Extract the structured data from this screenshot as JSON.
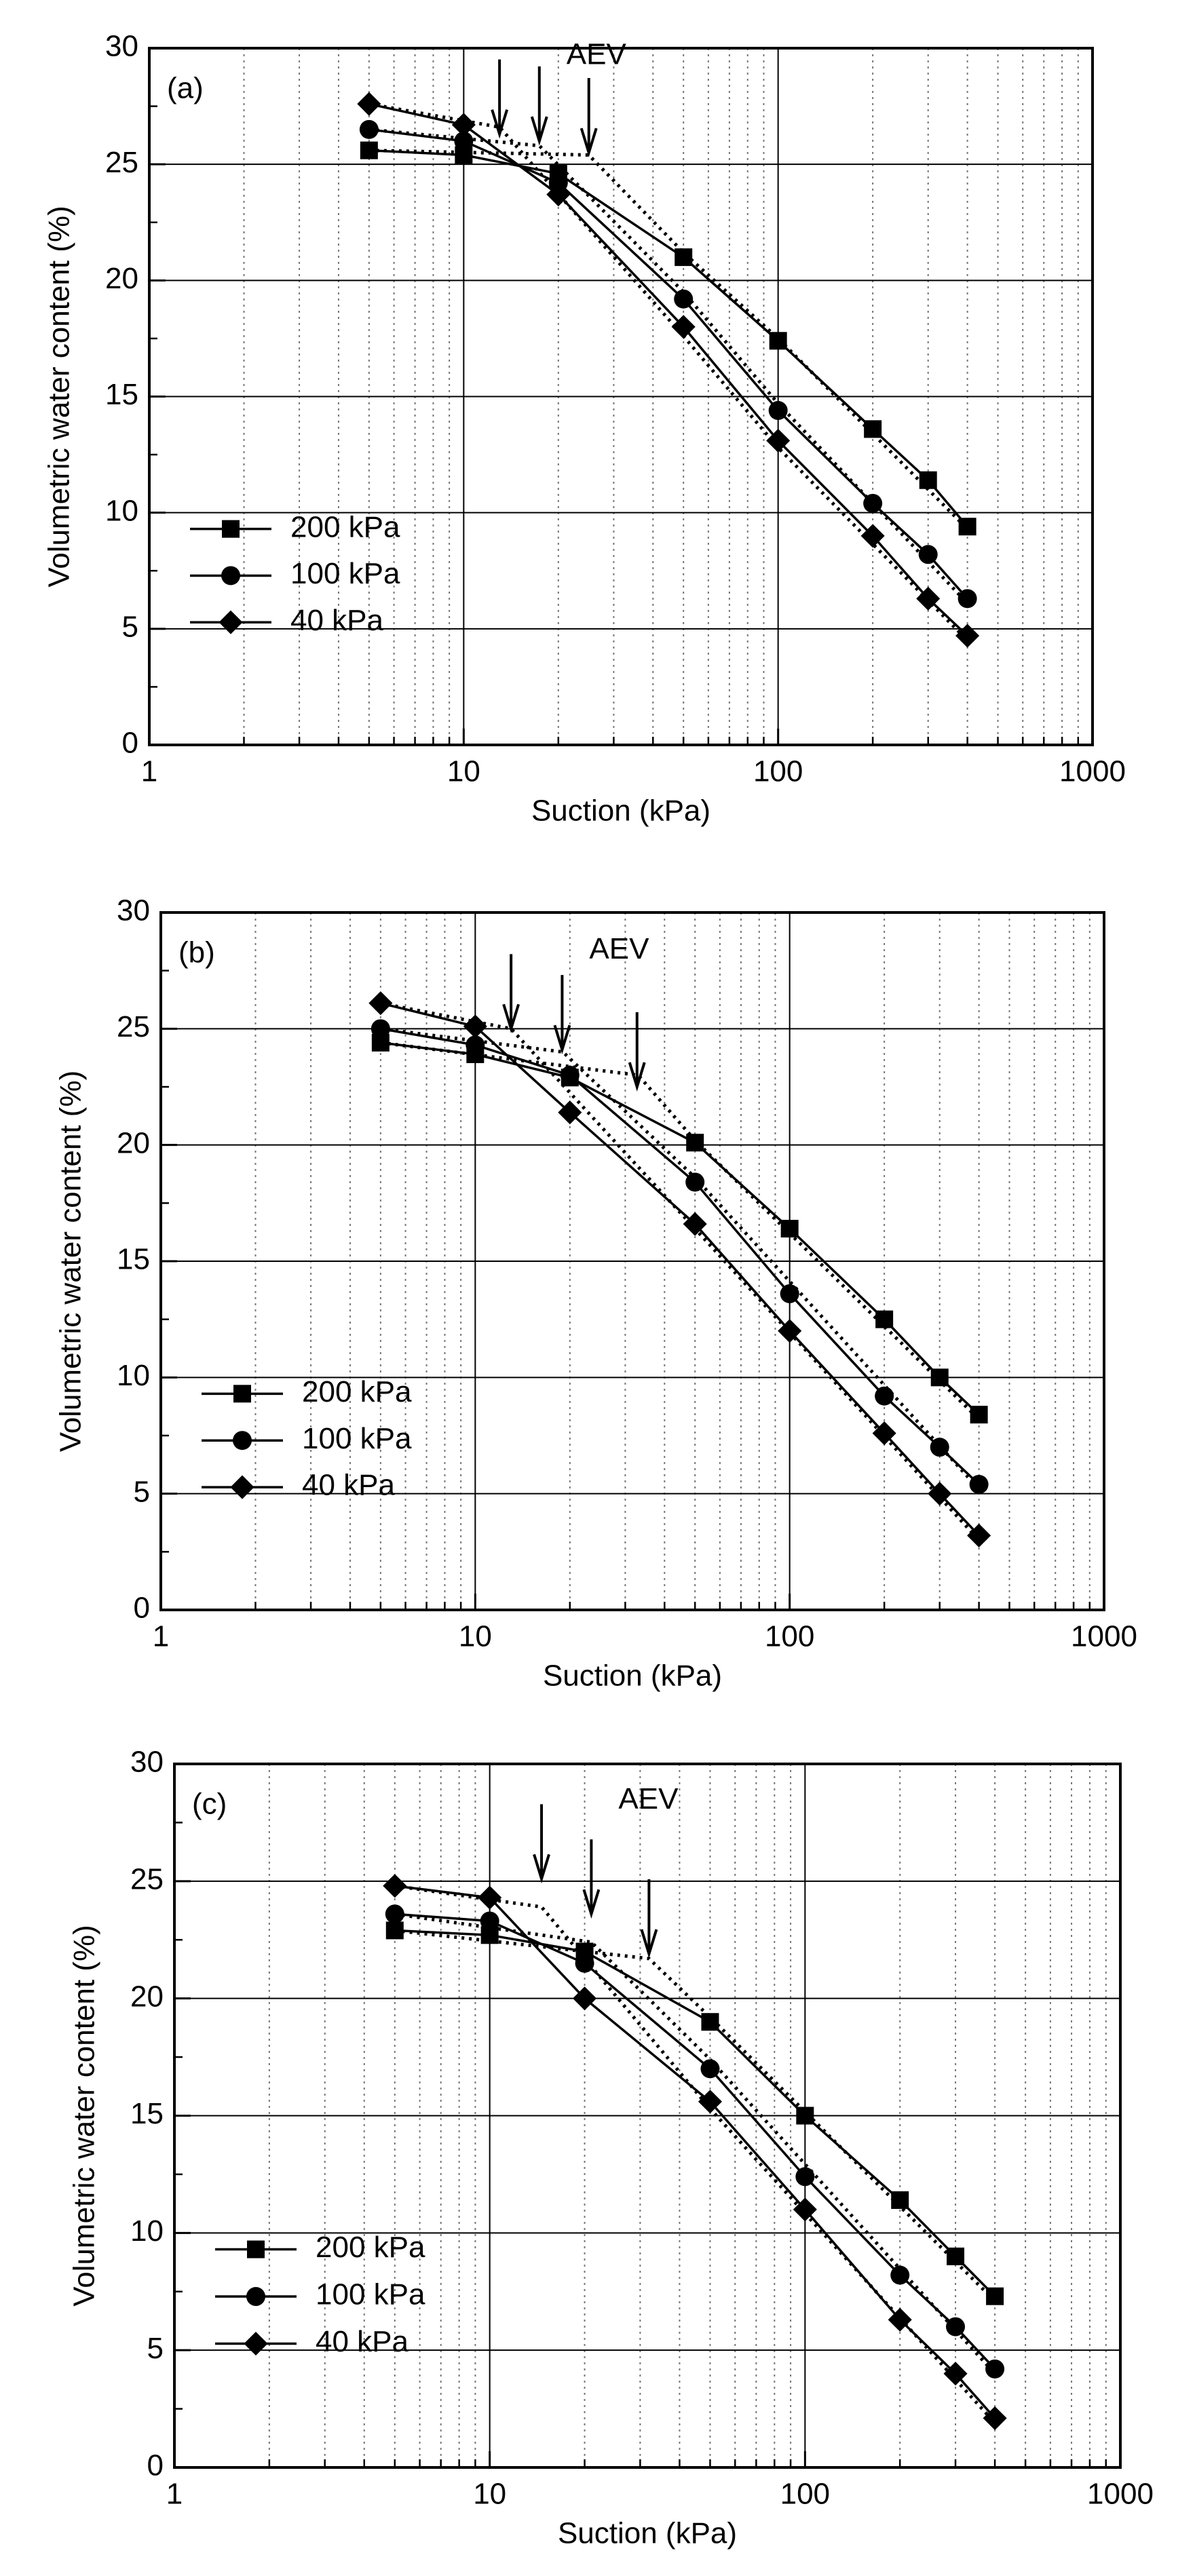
{
  "chart_data": [
    {
      "type": "line",
      "panel_label": "(a)",
      "x_label": "Suction (kPa)",
      "y_label": "Volumetric water content (%)",
      "xlim": [
        1,
        1000
      ],
      "xticks": [
        1,
        10,
        100,
        1000
      ],
      "ylim": [
        0,
        30
      ],
      "yticks": [
        0,
        5,
        10,
        15,
        20,
        25,
        30
      ],
      "log_x": true,
      "grid": true,
      "legend": "lower left",
      "series": [
        {
          "name": "200 kPa",
          "color": "#000000",
          "marker": "square",
          "x": [
            5,
            10,
            20,
            50,
            100,
            200,
            300,
            400
          ],
          "values": [
            25.6,
            25.4,
            24.6,
            21.0,
            17.4,
            13.6,
            11.4,
            9.4
          ]
        },
        {
          "name": "100 kPa",
          "color": "#000000",
          "marker": "circle",
          "x": [
            5,
            10,
            20,
            50,
            100,
            200,
            300,
            400
          ],
          "values": [
            26.5,
            26.0,
            24.2,
            19.2,
            14.4,
            10.4,
            8.2,
            6.3
          ]
        },
        {
          "name": "40 kPa",
          "color": "#000000",
          "marker": "diamond",
          "x": [
            5,
            10,
            20,
            50,
            100,
            200,
            300,
            400
          ],
          "values": [
            27.6,
            26.7,
            23.7,
            18.0,
            13.1,
            9.0,
            6.3,
            4.7
          ]
        }
      ],
      "fit_lines": [
        {
          "x": [
            5,
            25,
            50,
            100,
            400
          ],
          "values": [
            25.6,
            25.4,
            21.2,
            17.5,
            9.3
          ]
        },
        {
          "x": [
            5,
            17.4,
            50,
            100,
            400
          ],
          "values": [
            26.5,
            25.8,
            19.5,
            14.7,
            6.1
          ]
        },
        {
          "x": [
            5,
            13,
            50,
            100,
            400
          ],
          "values": [
            27.6,
            26.6,
            17.6,
            12.8,
            4.5
          ]
        }
      ],
      "aev": {
        "label": "AEV",
        "x": [
          13,
          17.4,
          25
        ],
        "y": [
          26.3,
          26.0,
          25.5
        ]
      }
    },
    {
      "type": "line",
      "panel_label": "(b)",
      "x_label": "Suction (kPa)",
      "y_label": "Volumetric water content (%)",
      "xlim": [
        1,
        1000
      ],
      "xticks": [
        1,
        10,
        100,
        1000
      ],
      "ylim": [
        0,
        30
      ],
      "yticks": [
        0,
        5,
        10,
        15,
        20,
        25,
        30
      ],
      "log_x": true,
      "grid": true,
      "legend": "lower left",
      "series": [
        {
          "name": "200 kPa",
          "color": "#000000",
          "marker": "square",
          "x": [
            5,
            10,
            20,
            50,
            100,
            200,
            300,
            400
          ],
          "values": [
            24.4,
            23.9,
            22.9,
            20.1,
            16.4,
            12.5,
            10.0,
            8.4
          ]
        },
        {
          "name": "100 kPa",
          "color": "#000000",
          "marker": "circle",
          "x": [
            5,
            10,
            20,
            50,
            100,
            200,
            300,
            400
          ],
          "values": [
            25.0,
            24.3,
            23.0,
            18.4,
            13.6,
            9.2,
            7.0,
            5.4
          ]
        },
        {
          "name": "40 kPa",
          "color": "#000000",
          "marker": "diamond",
          "x": [
            5,
            10,
            20,
            50,
            100,
            200,
            300,
            400
          ],
          "values": [
            26.1,
            25.1,
            21.4,
            16.6,
            12.0,
            7.6,
            5.0,
            3.2
          ]
        }
      ],
      "fit_lines": [
        {
          "x": [
            5,
            33,
            50,
            400
          ],
          "values": [
            24.4,
            23.0,
            20.2,
            8.2
          ]
        },
        {
          "x": [
            5,
            19,
            50,
            400
          ],
          "values": [
            25.0,
            24.0,
            18.6,
            5.2
          ]
        },
        {
          "x": [
            5,
            13,
            50,
            400
          ],
          "values": [
            26.1,
            25.0,
            16.4,
            3.0
          ]
        }
      ],
      "aev": {
        "label": "AEV",
        "x": [
          13,
          18.9,
          32.7
        ],
        "y": [
          25.0,
          24.1,
          22.5
        ]
      }
    },
    {
      "type": "line",
      "panel_label": "(c)",
      "x_label": "Suction (kPa)",
      "y_label": "Volumetric water content (%)",
      "xlim": [
        1,
        1000
      ],
      "xticks": [
        1,
        10,
        100,
        1000
      ],
      "ylim": [
        0,
        30
      ],
      "yticks": [
        0,
        5,
        10,
        15,
        20,
        25,
        30
      ],
      "log_x": true,
      "grid": true,
      "legend": "lower left",
      "series": [
        {
          "name": "200 kPa",
          "color": "#000000",
          "marker": "square",
          "x": [
            5,
            10,
            20,
            50,
            100,
            200,
            300,
            400
          ],
          "values": [
            22.9,
            22.7,
            22.0,
            19.0,
            15.0,
            11.4,
            9.0,
            7.3
          ]
        },
        {
          "name": "100 kPa",
          "color": "#000000",
          "marker": "circle",
          "x": [
            5,
            10,
            20,
            50,
            100,
            200,
            300,
            400
          ],
          "values": [
            23.6,
            23.3,
            21.5,
            17.0,
            12.4,
            8.2,
            6.0,
            4.2
          ]
        },
        {
          "name": "40 kPa",
          "color": "#000000",
          "marker": "diamond",
          "x": [
            5,
            10,
            20,
            50,
            100,
            200,
            300,
            400
          ],
          "values": [
            24.8,
            24.3,
            20.0,
            15.6,
            11.0,
            6.3,
            4.0,
            2.1
          ]
        }
      ],
      "fit_lines": [
        {
          "x": [
            5,
            32,
            50,
            400
          ],
          "values": [
            22.9,
            21.7,
            19.2,
            7.1
          ]
        },
        {
          "x": [
            5,
            21,
            50,
            400
          ],
          "values": [
            23.6,
            22.4,
            17.4,
            4.0
          ]
        },
        {
          "x": [
            5,
            14.6,
            50,
            400
          ],
          "values": [
            24.8,
            23.9,
            15.3,
            1.9
          ]
        }
      ],
      "aev": {
        "label": "AEV",
        "x": [
          14.6,
          21,
          32
        ],
        "y": [
          25.1,
          23.6,
          21.9
        ]
      }
    }
  ]
}
